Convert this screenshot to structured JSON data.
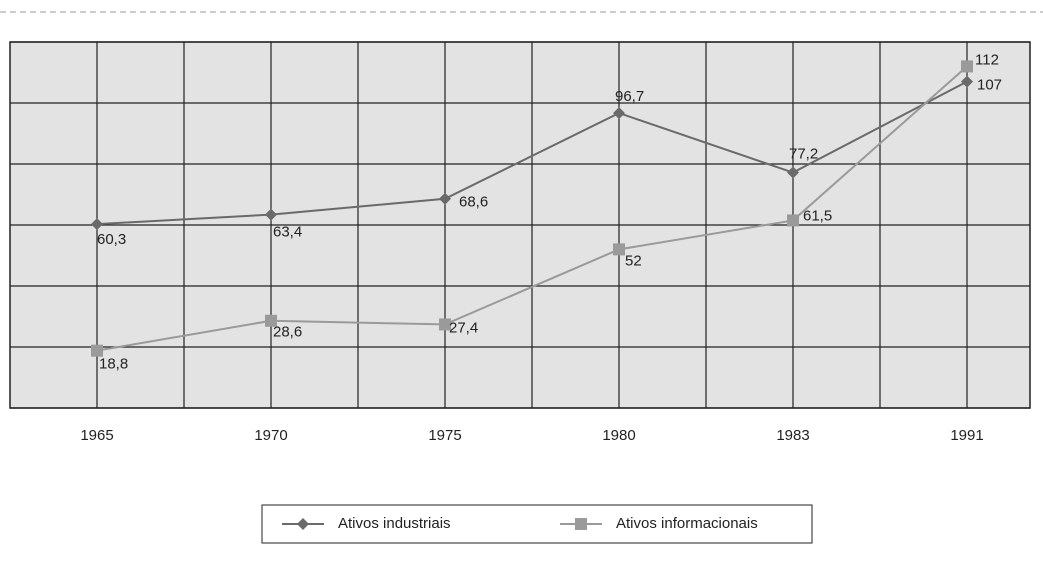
{
  "chart_data": {
    "type": "line",
    "categories": [
      "1965",
      "1970",
      "1975",
      "1980",
      "1983",
      "1991"
    ],
    "series": [
      {
        "name": "Ativos industriais",
        "color": "#6a6a6a",
        "marker": "diamond",
        "values": [
          60.3,
          63.4,
          68.6,
          96.7,
          77.2,
          107
        ],
        "value_labels": [
          "60,3",
          "63,4",
          "68,6",
          "96,7",
          "77,2",
          "107"
        ]
      },
      {
        "name": "Ativos informacionais",
        "color": "#9a9a9a",
        "marker": "square",
        "values": [
          18.8,
          28.6,
          27.4,
          52,
          61.5,
          112
        ],
        "value_labels": [
          "18,8",
          "28,6",
          "27,4",
          "52",
          "61,5",
          "112"
        ]
      }
    ],
    "ylim": [
      0,
      120
    ],
    "yticks": [
      0,
      20,
      40,
      60,
      80,
      100,
      120
    ],
    "grid": true
  }
}
